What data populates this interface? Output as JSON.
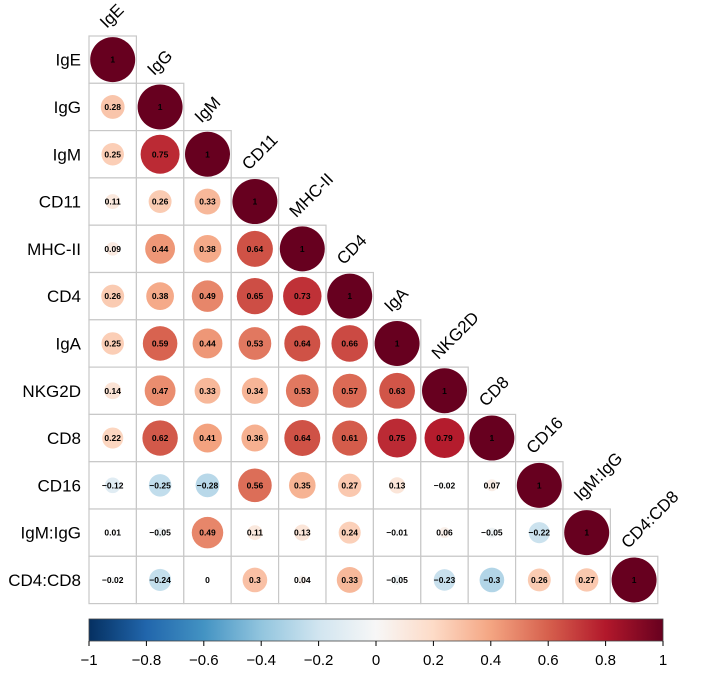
{
  "chart_data": {
    "type": "heatmap",
    "subtype": "correlation-circles-lower-triangle",
    "variables": [
      "IgE",
      "IgG",
      "IgM",
      "CD11",
      "MHC-II",
      "CD4",
      "IgA",
      "NKG2D",
      "CD8",
      "CD16",
      "IgM:IgG",
      "CD4:CD8"
    ],
    "matrix": [
      [
        1
      ],
      [
        0.28,
        1
      ],
      [
        0.25,
        0.75,
        1
      ],
      [
        0.11,
        0.26,
        0.33,
        1
      ],
      [
        0.09,
        0.44,
        0.38,
        0.64,
        1
      ],
      [
        0.26,
        0.38,
        0.49,
        0.65,
        0.73,
        1
      ],
      [
        0.25,
        0.59,
        0.44,
        0.53,
        0.64,
        0.66,
        1
      ],
      [
        0.14,
        0.47,
        0.33,
        0.34,
        0.53,
        0.57,
        0.63,
        1
      ],
      [
        0.22,
        0.62,
        0.41,
        0.36,
        0.64,
        0.61,
        0.75,
        0.79,
        1
      ],
      [
        -0.12,
        -0.25,
        -0.28,
        0.56,
        0.35,
        0.27,
        0.13,
        -0.02,
        0.07,
        1
      ],
      [
        0.01,
        -0.05,
        0.49,
        0.11,
        0.13,
        0.24,
        -0.01,
        0.06,
        -0.05,
        -0.22,
        1
      ],
      [
        -0.02,
        -0.24,
        0,
        0.3,
        0.04,
        0.33,
        -0.05,
        -0.23,
        -0.3,
        0.26,
        0.27,
        1
      ]
    ],
    "colorbar": {
      "range": [
        -1,
        1
      ],
      "ticks": [
        -1,
        -0.8,
        -0.6,
        -0.4,
        -0.2,
        0,
        0.2,
        0.4,
        0.6,
        0.8,
        1
      ],
      "tick_labels": [
        "−1",
        "−0.8",
        "−0.6",
        "−0.4",
        "−0.2",
        "0",
        "0.2",
        "0.4",
        "0.6",
        "0.8",
        "1"
      ],
      "colors": [
        "#053061",
        "#2166ac",
        "#4393c3",
        "#92c5de",
        "#d1e5f0",
        "#f7f7f7",
        "#fddbc7",
        "#f4a582",
        "#d6604d",
        "#b2182b",
        "#67001f"
      ],
      "position": "bottom"
    }
  }
}
